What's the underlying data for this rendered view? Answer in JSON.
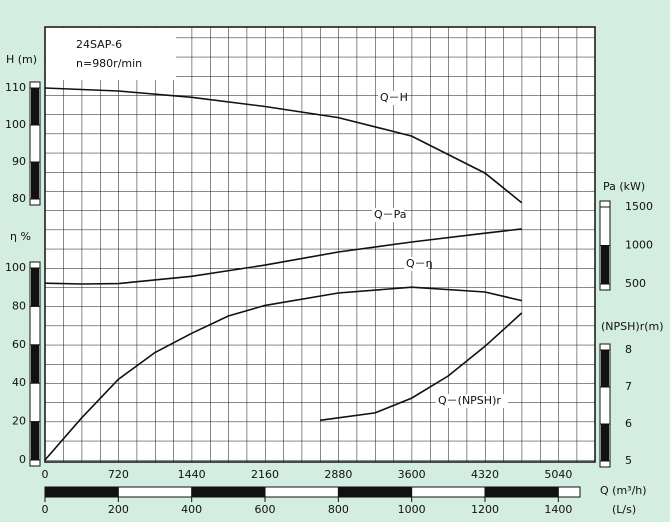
{
  "chart_data": {
    "type": "line",
    "grid": true,
    "color": "#111111",
    "info": [
      "24SAP-6",
      "n=980r/min"
    ],
    "x_axis": {
      "label": "Q (m³/h)",
      "lim": [
        0,
        5400
      ],
      "ticks": [
        0,
        720,
        1440,
        2160,
        2880,
        3600,
        4320,
        5040
      ]
    },
    "x2_axis": {
      "label": "(L/s)",
      "lim": [
        0,
        1500
      ],
      "ticks": [
        0,
        200,
        400,
        600,
        800,
        1000,
        1200,
        1400
      ]
    },
    "y_axes": [
      {
        "label": "H (m)",
        "lim": [
          80,
          110
        ],
        "ticks": [
          80,
          90,
          100,
          110
        ]
      },
      {
        "label": "η %",
        "lim": [
          0,
          100
        ],
        "ticks": [
          0,
          20,
          40,
          60,
          80,
          100
        ]
      },
      {
        "label": "Pa (kW)",
        "lim": [
          500,
          1500
        ],
        "ticks": [
          500,
          1000,
          1500
        ]
      },
      {
        "label": "(NPSH)r(m)",
        "lim": [
          5,
          8
        ],
        "ticks": [
          5,
          6,
          7,
          8
        ]
      }
    ],
    "series": [
      {
        "name": "Q－H",
        "axis": 0,
        "x": [
          0,
          720,
          1440,
          2160,
          2880,
          3600,
          4320,
          4680
        ],
        "values": [
          110,
          109.2,
          107.5,
          105,
          102,
          97,
          87,
          79
        ]
      },
      {
        "name": "Q－Pa",
        "axis": 2,
        "x": [
          0,
          360,
          720,
          1440,
          2160,
          2880,
          3600,
          4320,
          4680
        ],
        "values": [
          510,
          500,
          505,
          600,
          745,
          915,
          1045,
          1160,
          1215
        ]
      },
      {
        "name": "Q－η",
        "axis": 1,
        "x": [
          0,
          360,
          720,
          1080,
          1440,
          1800,
          2160,
          2880,
          3600,
          4320,
          4680
        ],
        "values": [
          0,
          22,
          42,
          56,
          66,
          75,
          80.5,
          87,
          90,
          87.5,
          83
        ]
      },
      {
        "name": "Q－(NPSH)r",
        "axis": 3,
        "x": [
          2700,
          3240,
          3600,
          3960,
          4320,
          4680
        ],
        "values": [
          6.1,
          6.3,
          6.7,
          7.3,
          8.1,
          9.0
        ]
      }
    ]
  }
}
